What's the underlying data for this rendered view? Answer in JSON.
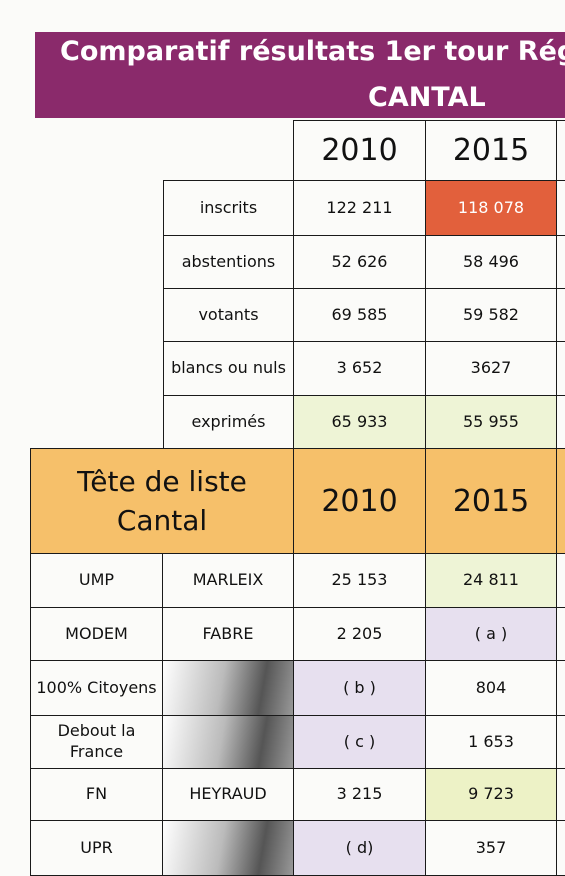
{
  "header": {
    "title": "Comparatif résultats 1er tour Rég",
    "subtitle": "CANTAL"
  },
  "table1": {
    "columns": [
      "2010",
      "2015"
    ],
    "rows": [
      [
        "inscrits",
        "122 211",
        "118 078"
      ],
      [
        "abstentions",
        "52 626",
        "58 496"
      ],
      [
        "votants",
        "69 585",
        "59 582"
      ],
      [
        "blancs ou nuls",
        "3 652",
        "3627"
      ],
      [
        "exprimés",
        "65 933",
        "55 955"
      ]
    ]
  },
  "table2": {
    "heading": [
      "Tête de liste",
      "Cantal"
    ],
    "columns": [
      "2010",
      "2015"
    ],
    "rows": [
      [
        "UMP",
        "MARLEIX",
        "25 153",
        "24 811"
      ],
      [
        "MODEM",
        "FABRE",
        "2 205",
        "( a )"
      ],
      [
        "100% Citoyens",
        null,
        "( b )",
        "804"
      ],
      [
        "Debout la France",
        null,
        "( c )",
        "1 653"
      ],
      [
        "FN",
        "HEYRAUD",
        "3 215",
        "9 723"
      ],
      [
        "UPR",
        null,
        "( d)",
        "357"
      ]
    ]
  }
}
